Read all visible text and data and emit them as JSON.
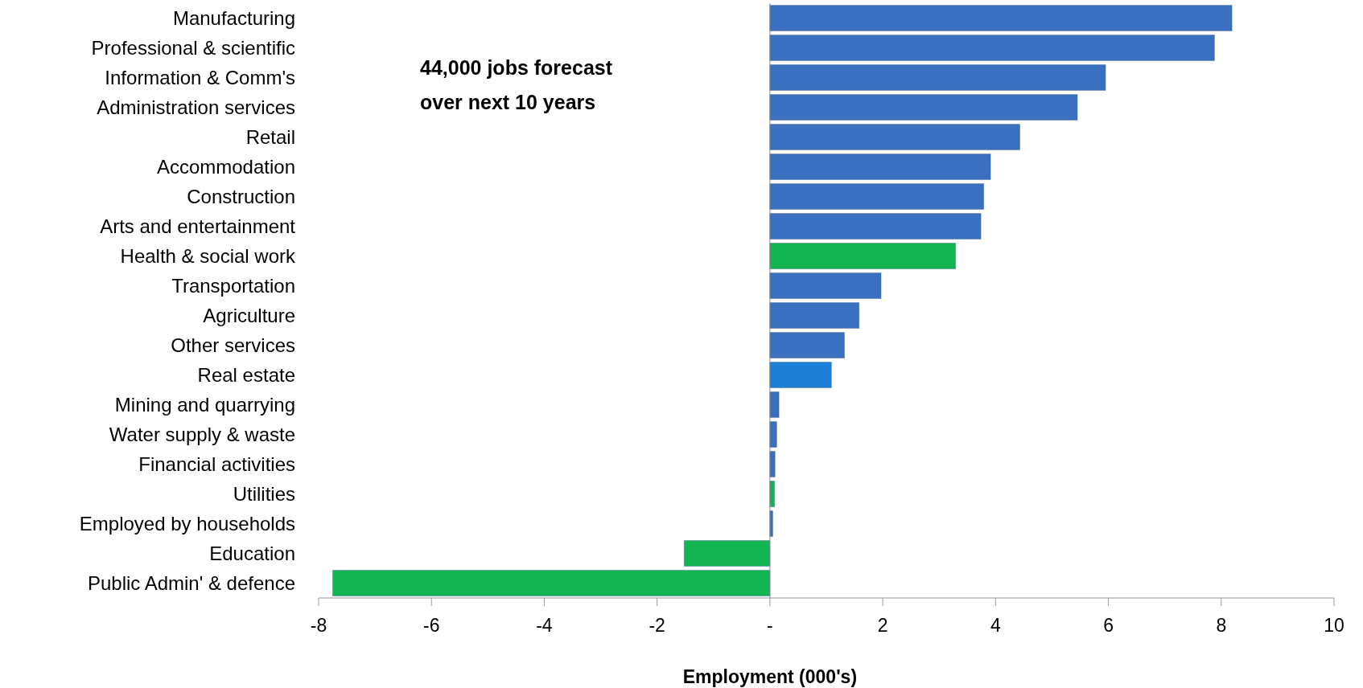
{
  "chart_data": {
    "type": "bar",
    "orientation": "horizontal",
    "xlabel": "Employment (000's)",
    "categories": [
      "Manufacturing",
      "Professional & scientific",
      "Information & Comm's",
      "Administration services",
      "Retail",
      "Accommodation",
      "Construction",
      "Arts and entertainment",
      "Health & social work",
      "Transportation ",
      "Agriculture",
      "Other services",
      "Real estate",
      "Mining and quarrying",
      "Water supply & waste ",
      "Financial activities",
      "Utilities",
      "Employed by households",
      "Education",
      "Public Admin' & defence"
    ],
    "values": [
      8.19,
      7.88,
      5.95,
      5.45,
      4.43,
      3.91,
      3.79,
      3.74,
      3.29,
      1.97,
      1.58,
      1.32,
      1.09,
      0.16,
      0.12,
      0.09,
      0.08,
      0.05,
      -1.52,
      -7.75
    ],
    "colors": [
      "#3b6fbf",
      "#3b6fbf",
      "#3b6fbf",
      "#3b6fbf",
      "#3b6fbf",
      "#3b6fbf",
      "#3b6fbf",
      "#3b6fbf",
      "#12b552",
      "#3b6fbf",
      "#3b6fbf",
      "#3b6fbf",
      "#1e7fd6",
      "#3b6fbf",
      "#3b6fbf",
      "#3b6fbf",
      "#12b552",
      "#3b6fbf",
      "#12b552",
      "#12b552"
    ],
    "xlim": [
      -8,
      10
    ],
    "xticks": [
      -8,
      -6,
      -4,
      -2,
      {
        "value": 0,
        "label": "-"
      },
      2,
      4,
      6,
      8,
      10
    ],
    "annotations": [
      "44,000 jobs forecast\nover next 10 years"
    ]
  }
}
